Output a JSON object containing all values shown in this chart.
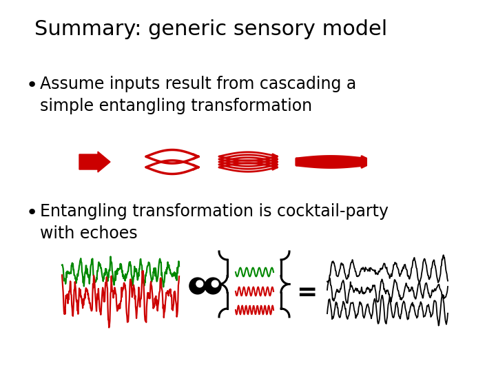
{
  "title": "Summary: generic sensory model",
  "bullet1_line1": "Assume inputs result from cascading a",
  "bullet1_line2": "simple entangling transformation",
  "bullet2_line1": "Entangling transformation is cocktail-party",
  "bullet2_line2": "with echoes",
  "bg_color": "#ffffff",
  "text_color": "#000000",
  "red_color": "#cc0000",
  "green_color": "#008800",
  "title_fontsize": 22,
  "bullet_fontsize": 17,
  "fig_width": 7.2,
  "fig_height": 5.4
}
